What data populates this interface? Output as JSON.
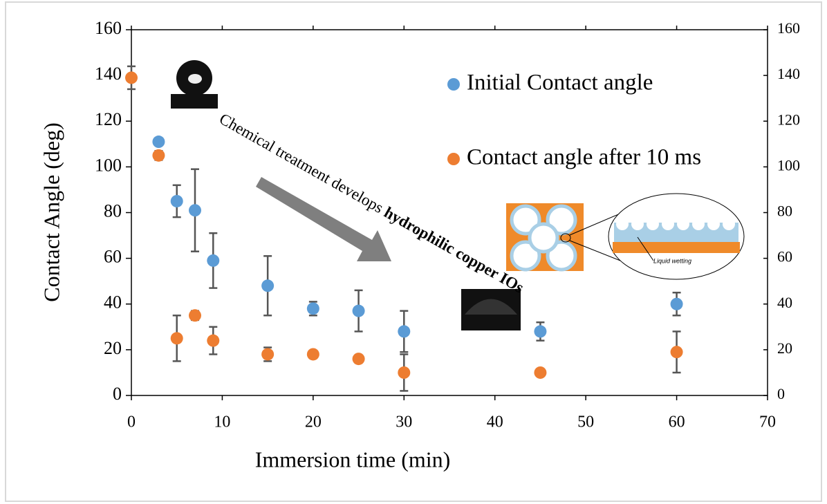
{
  "chart_data": {
    "type": "scatter",
    "xlabel": "Immersion time (min)",
    "ylabel": "Contact Angle (deg)",
    "xlim": [
      0,
      70
    ],
    "xticks": [
      0,
      10,
      20,
      30,
      40,
      50,
      60,
      70
    ],
    "ylim": [
      0,
      160
    ],
    "yticks": [
      0,
      20,
      40,
      60,
      80,
      100,
      120,
      140,
      160
    ],
    "y2lim": [
      0,
      160
    ],
    "y2ticks": [
      0,
      20,
      40,
      60,
      80,
      100,
      120,
      140,
      160
    ],
    "series": [
      {
        "name": "Initial Contact angle",
        "color": "#5b9bd5",
        "x": [
          3,
          5,
          7,
          9,
          15,
          20,
          25,
          30,
          45,
          60
        ],
        "values": [
          111,
          85,
          81,
          59,
          48,
          38,
          37,
          28,
          28,
          40
        ],
        "errors": [
          0,
          7,
          18,
          12,
          13,
          3,
          9,
          9,
          4,
          5
        ]
      },
      {
        "name": "Contact angle after 10 ms",
        "color": "#ed7d31",
        "x": [
          0,
          3,
          5,
          7,
          9,
          15,
          20,
          25,
          30,
          45,
          60
        ],
        "values": [
          139,
          105,
          25,
          35,
          24,
          18,
          18,
          16,
          10,
          10,
          19
        ],
        "errors": [
          5,
          2,
          10,
          2,
          6,
          3,
          0,
          0,
          8,
          0,
          9
        ]
      }
    ],
    "annotation": "Chemical treatment develops",
    "annotation_bold": "hydrophilic copper IOs",
    "inset_label": "Liquid wetting"
  }
}
